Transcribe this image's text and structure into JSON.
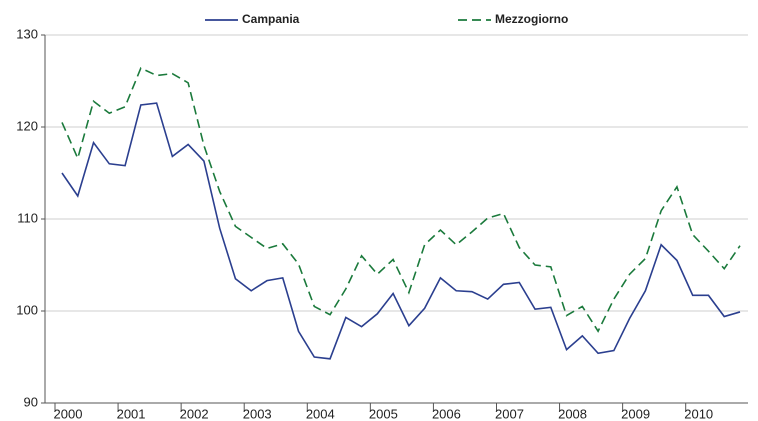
{
  "chart_data": {
    "type": "line",
    "categories": [
      "2000",
      null,
      null,
      null,
      "2001",
      null,
      null,
      null,
      "2002",
      null,
      null,
      null,
      "2003",
      null,
      null,
      null,
      "2004",
      null,
      null,
      null,
      "2005",
      null,
      null,
      null,
      "2006",
      null,
      null,
      null,
      "2007",
      null,
      null,
      null,
      "2008",
      null,
      null,
      null,
      "2009",
      null,
      null,
      null,
      "2010",
      null,
      null,
      null
    ],
    "series": [
      {
        "name": "Campania",
        "color": "#2b3f8f",
        "dashed": false,
        "values": [
          115,
          112.5,
          118.3,
          116,
          115.8,
          122.4,
          122.6,
          116.8,
          118.1,
          116.3,
          109,
          103.5,
          102.2,
          103.3,
          103.6,
          97.8,
          95,
          94.8,
          99.3,
          98.3,
          99.7,
          101.9,
          98.4,
          100.3,
          103.6,
          102.2,
          102.1,
          101.3,
          102.9,
          103.1,
          100.2,
          100.4,
          95.8,
          97.3,
          95.4,
          95.7,
          99.2,
          102.2,
          107.2,
          105.5,
          101.7,
          101.7,
          99.4,
          99.9
        ]
      },
      {
        "name": "Mezzogiorno",
        "color": "#1b7a3c",
        "dashed": true,
        "values": [
          120.5,
          116.6,
          122.8,
          121.5,
          122.2,
          126.4,
          125.6,
          125.8,
          124.8,
          118,
          113,
          109.2,
          108,
          106.8,
          107.3,
          105.1,
          100.5,
          99.6,
          102.4,
          106,
          104,
          105.6,
          102,
          107.2,
          108.8,
          107.2,
          108.6,
          110.1,
          110.6,
          106.9,
          105,
          104.8,
          99.5,
          100.5,
          97.8,
          101.3,
          104,
          105.7,
          110.9,
          113.5,
          108.3,
          106.5,
          104.6,
          107.1
        ]
      }
    ],
    "ylim": [
      90,
      130
    ],
    "yticks": [
      90,
      100,
      110,
      120,
      130
    ],
    "grid": true,
    "legend": "top"
  }
}
